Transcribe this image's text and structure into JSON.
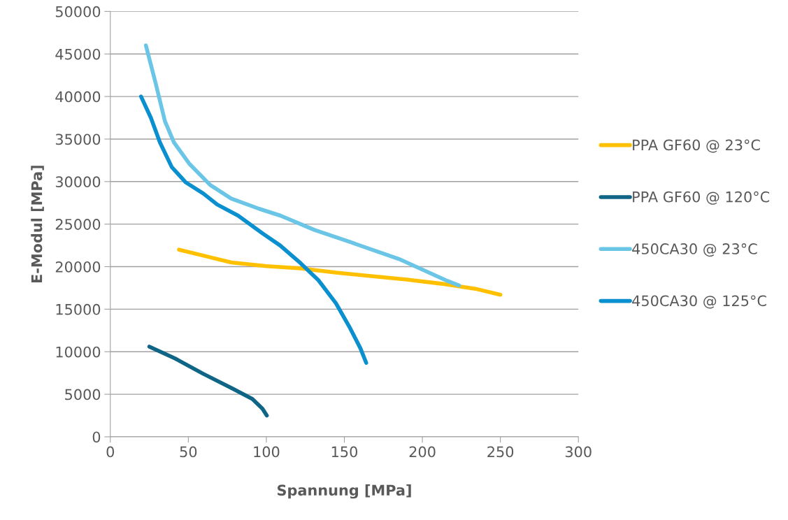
{
  "chart_data": {
    "type": "line",
    "xlabel": "Spannung [MPa]",
    "ylabel": "E-Modul [MPa]",
    "xlim": [
      0,
      300
    ],
    "xticks": [
      0,
      50,
      100,
      150,
      200,
      250,
      300
    ],
    "ylim": [
      0,
      50000
    ],
    "yticks": [
      0,
      5000,
      10000,
      15000,
      20000,
      25000,
      30000,
      35000,
      40000,
      45000,
      50000
    ],
    "grid": "y",
    "legend": "right",
    "marker": "none",
    "line_style": "solid",
    "series": [
      {
        "name": "PPA GF60 @ 23°C",
        "color": "#ffc000",
        "x": [
          44,
          64,
          77.5,
          100,
          122,
          144.6,
          167,
          189,
          212,
          234,
          250
        ],
        "values": [
          22000,
          21100,
          20500,
          20070,
          19800,
          19300,
          18900,
          18500,
          18000,
          17400,
          16700
        ]
      },
      {
        "name": "PPA GF60 @ 120°C",
        "color": "#0e6586",
        "x": [
          25,
          41.6,
          59.6,
          77.5,
          91,
          97.5,
          100.3
        ],
        "values": [
          10600,
          9200,
          7400,
          5750,
          4450,
          3300,
          2500
        ]
      },
      {
        "name": "450CA30 @ 23°C",
        "color": "#6ac5e6",
        "x": [
          22.8,
          29,
          35,
          40.8,
          50.6,
          64,
          77.5,
          95.4,
          109,
          131,
          153.6,
          185,
          203,
          216.3,
          223.5
        ],
        "values": [
          46000,
          41600,
          37100,
          34600,
          32100,
          29600,
          28000,
          26800,
          26000,
          24300,
          22900,
          20900,
          19400,
          18300,
          17800
        ]
      },
      {
        "name": "450CA30 @ 125°C",
        "color": "#0a8fcf",
        "x": [
          19.7,
          26,
          31.8,
          39.4,
          48.4,
          59.6,
          68.5,
          81.9,
          97.6,
          108.8,
          122,
          133.4,
          144.6,
          153.6,
          160.3,
          164
        ],
        "values": [
          40000,
          37500,
          34600,
          31700,
          29900,
          28600,
          27300,
          26000,
          23900,
          22500,
          20400,
          18400,
          15700,
          12800,
          10400,
          8700
        ]
      }
    ]
  }
}
